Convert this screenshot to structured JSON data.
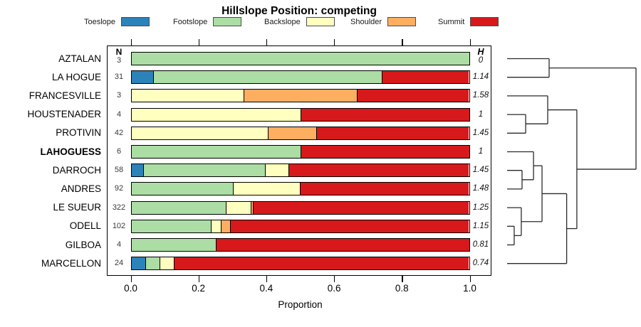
{
  "title": "Hillslope Position: competing",
  "xlabel": "Proportion",
  "columns": {
    "n_header": "N",
    "h_header": "H"
  },
  "x_ticks": [
    "0.0",
    "0.2",
    "0.4",
    "0.6",
    "0.8",
    "1.0"
  ],
  "legend": [
    {
      "label": "Toeslope",
      "color": "#2b83ba"
    },
    {
      "label": "Footslope",
      "color": "#abdda4"
    },
    {
      "label": "Backslope",
      "color": "#ffffbf"
    },
    {
      "label": "Shoulder",
      "color": "#fdae61"
    },
    {
      "label": "Summit",
      "color": "#d7191c"
    }
  ],
  "chart_data": {
    "type": "bar",
    "stacked": true,
    "orientation": "horizontal",
    "title": "Hillslope Position: competing",
    "xlabel": "Proportion",
    "xlim": [
      0.0,
      1.0
    ],
    "x_tick_step": 0.2,
    "categories": [
      "Toeslope",
      "Footslope",
      "Backslope",
      "Shoulder",
      "Summit"
    ],
    "colors": {
      "Toeslope": "#2b83ba",
      "Footslope": "#abdda4",
      "Backslope": "#ffffbf",
      "Shoulder": "#fdae61",
      "Summit": "#d7191c"
    },
    "rows": [
      {
        "site": "AZTALAN",
        "n": 3,
        "h": "0",
        "bold": false,
        "segments": [
          {
            "category": "Footslope",
            "value": 1.0
          }
        ]
      },
      {
        "site": "LA HOGUE",
        "n": 31,
        "h": "1.14",
        "bold": false,
        "segments": [
          {
            "category": "Toeslope",
            "value": 0.065
          },
          {
            "category": "Footslope",
            "value": 0.677
          },
          {
            "category": "Summit",
            "value": 0.258
          }
        ]
      },
      {
        "site": "FRANCESVILLE",
        "n": 3,
        "h": "1.58",
        "bold": false,
        "segments": [
          {
            "category": "Backslope",
            "value": 0.333
          },
          {
            "category": "Shoulder",
            "value": 0.334
          },
          {
            "category": "Summit",
            "value": 0.333
          }
        ]
      },
      {
        "site": "HOUSTENADER",
        "n": 4,
        "h": "1",
        "bold": false,
        "segments": [
          {
            "category": "Backslope",
            "value": 0.5
          },
          {
            "category": "Summit",
            "value": 0.5
          }
        ]
      },
      {
        "site": "PROTIVIN",
        "n": 42,
        "h": "1.45",
        "bold": false,
        "segments": [
          {
            "category": "Backslope",
            "value": 0.405
          },
          {
            "category": "Shoulder",
            "value": 0.143
          },
          {
            "category": "Summit",
            "value": 0.452
          }
        ]
      },
      {
        "site": "LAHOGUESS",
        "n": 6,
        "h": "1",
        "bold": true,
        "segments": [
          {
            "category": "Footslope",
            "value": 0.5
          },
          {
            "category": "Summit",
            "value": 0.5
          }
        ]
      },
      {
        "site": "DARROCH",
        "n": 58,
        "h": "1.45",
        "bold": false,
        "segments": [
          {
            "category": "Toeslope",
            "value": 0.034
          },
          {
            "category": "Footslope",
            "value": 0.362
          },
          {
            "category": "Backslope",
            "value": 0.069
          },
          {
            "category": "Summit",
            "value": 0.535
          }
        ]
      },
      {
        "site": "ANDRES",
        "n": 92,
        "h": "1.48",
        "bold": false,
        "segments": [
          {
            "category": "Footslope",
            "value": 0.3
          },
          {
            "category": "Backslope",
            "value": 0.2
          },
          {
            "category": "Summit",
            "value": 0.5
          }
        ]
      },
      {
        "site": "LE SUEUR",
        "n": 322,
        "h": "1.25",
        "bold": false,
        "segments": [
          {
            "category": "Footslope",
            "value": 0.28
          },
          {
            "category": "Backslope",
            "value": 0.073
          },
          {
            "category": "Shoulder",
            "value": 0.006
          },
          {
            "category": "Summit",
            "value": 0.641
          }
        ]
      },
      {
        "site": "ODELL",
        "n": 102,
        "h": "1.15",
        "bold": false,
        "segments": [
          {
            "category": "Footslope",
            "value": 0.235
          },
          {
            "category": "Backslope",
            "value": 0.029
          },
          {
            "category": "Shoulder",
            "value": 0.029
          },
          {
            "category": "Summit",
            "value": 0.707
          }
        ]
      },
      {
        "site": "GILBOA",
        "n": 4,
        "h": "0.81",
        "bold": false,
        "segments": [
          {
            "category": "Footslope",
            "value": 0.25
          },
          {
            "category": "Summit",
            "value": 0.75
          }
        ]
      },
      {
        "site": "MARCELLON",
        "n": 24,
        "h": "0.74",
        "bold": false,
        "segments": [
          {
            "category": "Toeslope",
            "value": 0.042
          },
          {
            "category": "Footslope",
            "value": 0.042
          },
          {
            "category": "Backslope",
            "value": 0.042
          },
          {
            "category": "Summit",
            "value": 0.874
          }
        ]
      }
    ],
    "dendrogram": {
      "note": "agglomerative cluster tree drawn right of bars; leaves L0-L11 match row order; heights normalized 0-1",
      "merges": [
        {
          "id": "n1",
          "children": [
            "L0",
            "L1"
          ],
          "height": 0.326
        },
        {
          "id": "n2",
          "children": [
            "L3",
            "L4"
          ],
          "height": 0.144
        },
        {
          "id": "n3",
          "children": [
            "L2",
            "n2"
          ],
          "height": 0.315
        },
        {
          "id": "n4",
          "children": [
            "L6",
            "L7"
          ],
          "height": 0.116
        },
        {
          "id": "n5",
          "children": [
            "L5",
            "n4"
          ],
          "height": 0.205
        },
        {
          "id": "n6",
          "children": [
            "L9",
            "L10"
          ],
          "height": 0.055
        },
        {
          "id": "n7",
          "children": [
            "L8",
            "n6"
          ],
          "height": 0.11
        },
        {
          "id": "n8",
          "children": [
            "n5",
            "n7"
          ],
          "height": 0.271
        },
        {
          "id": "n9",
          "children": [
            "n8",
            "L11"
          ],
          "height": 0.462
        },
        {
          "id": "n10",
          "children": [
            "n3",
            "n9"
          ],
          "height": 0.541
        },
        {
          "id": "n11",
          "children": [
            "n1",
            "n10"
          ],
          "height": 1.0
        }
      ]
    }
  }
}
